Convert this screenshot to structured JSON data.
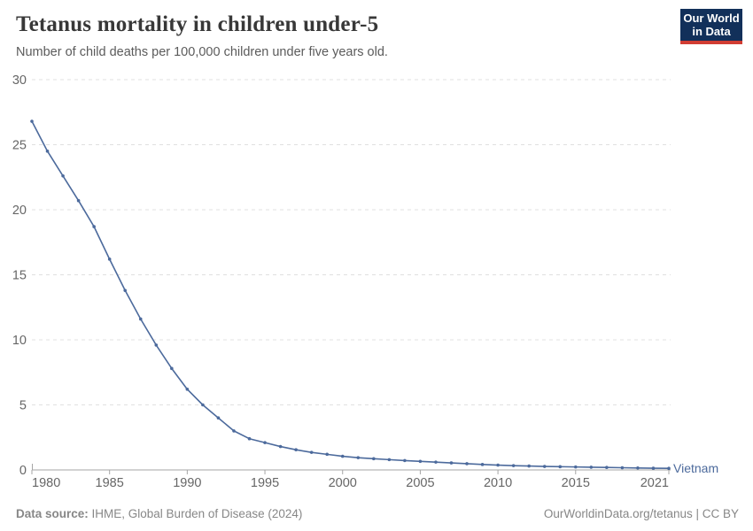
{
  "header": {
    "title": "Tetanus mortality in children under-5",
    "subtitle": "Number of child deaths per 100,000 children under five years old.",
    "logo": {
      "line1": "Our World",
      "line2": "in Data",
      "bg": "#12305a",
      "accent": "#d13d33"
    }
  },
  "chart_data": {
    "type": "line",
    "title": "Tetanus mortality in children under-5",
    "xlabel": "",
    "ylabel": "",
    "xlim": [
      1980,
      2021
    ],
    "ylim": [
      0,
      30
    ],
    "xticks": [
      1980,
      1985,
      1990,
      1995,
      2000,
      2005,
      2010,
      2015,
      2021
    ],
    "yticks": [
      0,
      5,
      10,
      15,
      20,
      25,
      30
    ],
    "grid": "horizontal-dashed",
    "legend_position": "end-of-line",
    "series": [
      {
        "name": "Vietnam",
        "color": "#4C6A9C",
        "years": [
          1980,
          1981,
          1982,
          1983,
          1984,
          1985,
          1986,
          1987,
          1988,
          1989,
          1990,
          1991,
          1992,
          1993,
          1994,
          1995,
          1996,
          1997,
          1998,
          1999,
          2000,
          2001,
          2002,
          2003,
          2004,
          2005,
          2006,
          2007,
          2008,
          2009,
          2010,
          2011,
          2012,
          2013,
          2014,
          2015,
          2016,
          2017,
          2018,
          2019,
          2020,
          2021
        ],
        "values": [
          26.8,
          24.5,
          22.6,
          20.7,
          18.7,
          16.2,
          13.8,
          11.6,
          9.6,
          7.8,
          6.2,
          5.0,
          4.0,
          3.0,
          2.4,
          2.1,
          1.8,
          1.55,
          1.35,
          1.2,
          1.05,
          0.94,
          0.86,
          0.79,
          0.72,
          0.66,
          0.6,
          0.54,
          0.48,
          0.42,
          0.37,
          0.33,
          0.3,
          0.27,
          0.25,
          0.23,
          0.21,
          0.19,
          0.17,
          0.15,
          0.13,
          0.12
        ]
      }
    ],
    "colors": {
      "gridline": "#e0e0e0",
      "axis": "#a5a5a5",
      "tick_label": "#666666"
    }
  },
  "footer": {
    "source_label": "Data source:",
    "source_text": " IHME, Global Burden of Disease (2024)",
    "credit": "OurWorldinData.org/tetanus | CC BY"
  }
}
